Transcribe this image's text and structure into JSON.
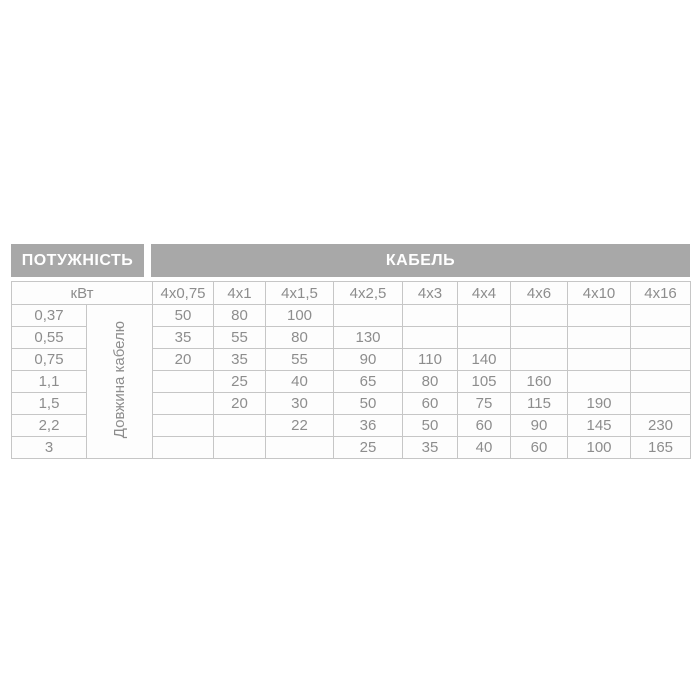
{
  "header": {
    "power_label": "ПОТУЖНІСТЬ",
    "cable_label": "КАБЕЛЬ"
  },
  "table": {
    "unit_label": "кВт",
    "length_label": "Довжина кабелю",
    "cable_sections": [
      "4х0,75",
      "4х1",
      "4х1,5",
      "4х2,5",
      "4х3",
      "4х4",
      "4х6",
      "4х10",
      "4х16"
    ],
    "rows": [
      {
        "power": "0,37",
        "values": [
          "50",
          "80",
          "100",
          "",
          "",
          "",
          "",
          "",
          ""
        ]
      },
      {
        "power": "0,55",
        "values": [
          "35",
          "55",
          "80",
          "130",
          "",
          "",
          "",
          "",
          ""
        ]
      },
      {
        "power": "0,75",
        "values": [
          "20",
          "35",
          "55",
          "90",
          "110",
          "140",
          "",
          "",
          ""
        ]
      },
      {
        "power": "1,1",
        "values": [
          "",
          "25",
          "40",
          "65",
          "80",
          "105",
          "160",
          "",
          ""
        ]
      },
      {
        "power": "1,5",
        "values": [
          "",
          "20",
          "30",
          "50",
          "60",
          "75",
          "115",
          "190",
          ""
        ]
      },
      {
        "power": "2,2",
        "values": [
          "",
          "",
          "22",
          "36",
          "50",
          "60",
          "90",
          "145",
          "230"
        ]
      },
      {
        "power": "3",
        "values": [
          "",
          "",
          "",
          "25",
          "35",
          "40",
          "60",
          "100",
          "165"
        ]
      }
    ]
  },
  "colors": {
    "header_bg": "#a8a8a8",
    "header_text": "#ffffff",
    "cell_text": "#8d8d8d",
    "border": "#c6c6c6",
    "background": "#ffffff"
  },
  "chart_data": {
    "type": "table",
    "title": "ПОТУЖНІСТЬ / КАБЕЛЬ",
    "row_header_unit": "кВт",
    "values_meaning": "Довжина кабелю",
    "columns": [
      "кВт",
      "4х0,75",
      "4х1",
      "4х1,5",
      "4х2,5",
      "4х3",
      "4х4",
      "4х6",
      "4х10",
      "4х16"
    ],
    "rows": [
      [
        "0,37",
        50,
        80,
        100,
        null,
        null,
        null,
        null,
        null,
        null
      ],
      [
        "0,55",
        35,
        55,
        80,
        130,
        null,
        null,
        null,
        null,
        null
      ],
      [
        "0,75",
        20,
        35,
        55,
        90,
        110,
        140,
        null,
        null,
        null
      ],
      [
        "1,1",
        null,
        25,
        40,
        65,
        80,
        105,
        160,
        null,
        null
      ],
      [
        "1,5",
        null,
        20,
        30,
        50,
        60,
        75,
        115,
        190,
        null
      ],
      [
        "2,2",
        null,
        null,
        22,
        36,
        50,
        60,
        90,
        145,
        230
      ],
      [
        "3",
        null,
        null,
        null,
        25,
        35,
        40,
        60,
        100,
        165
      ]
    ]
  }
}
